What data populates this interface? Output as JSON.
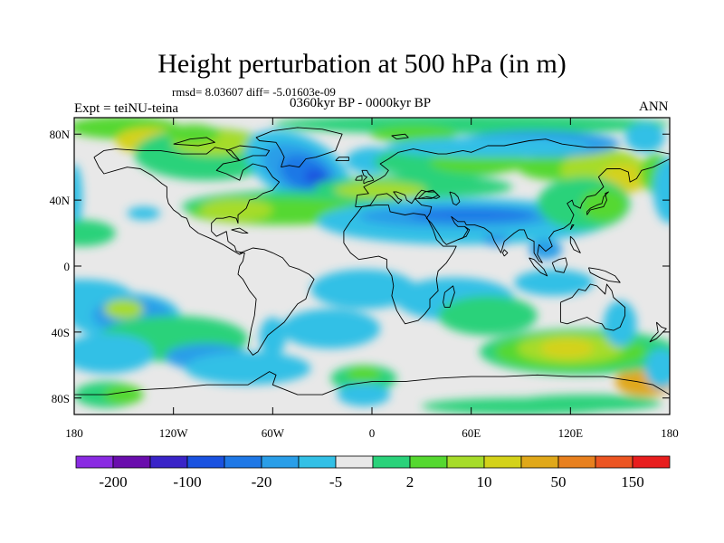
{
  "title": "Height perturbation at 500 hPa (in m)",
  "stats": "rmsd= 8.03607 diff= -5.01603e-09",
  "experiment": "Expt = teiNU-teina",
  "period": "0360kyr BP - 0000kyr BP",
  "season": "ANN",
  "axes": {
    "lon_ticks": [
      "180",
      "120W",
      "60W",
      "0",
      "60E",
      "120E",
      "180"
    ],
    "lat_ticks": [
      "80N",
      "40N",
      "0",
      "40S",
      "80S"
    ]
  },
  "colorbar": {
    "colors": [
      "#8a2be2",
      "#6a0dad",
      "#3a24c8",
      "#1a52e0",
      "#1f78e6",
      "#2a9ee8",
      "#33c0e6",
      "#e8e8e8",
      "#2ad27a",
      "#55d830",
      "#a6dc2a",
      "#d4d21a",
      "#e0a81a",
      "#e8801e",
      "#ec5522",
      "#e81e1e"
    ],
    "labels": [
      "-200",
      "-100",
      "-20",
      "-5",
      "2",
      "10",
      "50",
      "150"
    ]
  },
  "palette": {
    "neutral": "#e8e8e8",
    "dark_blue": "#1a52e0",
    "blue": "#1f78e6",
    "light_blue": "#2a9ee8",
    "cyan": "#33c0e6",
    "aqua": "#2ad27a",
    "green": "#55d830",
    "yellow_green": "#a6dc2a",
    "yellow": "#d4d21a",
    "orange": "#e0a81a"
  }
}
